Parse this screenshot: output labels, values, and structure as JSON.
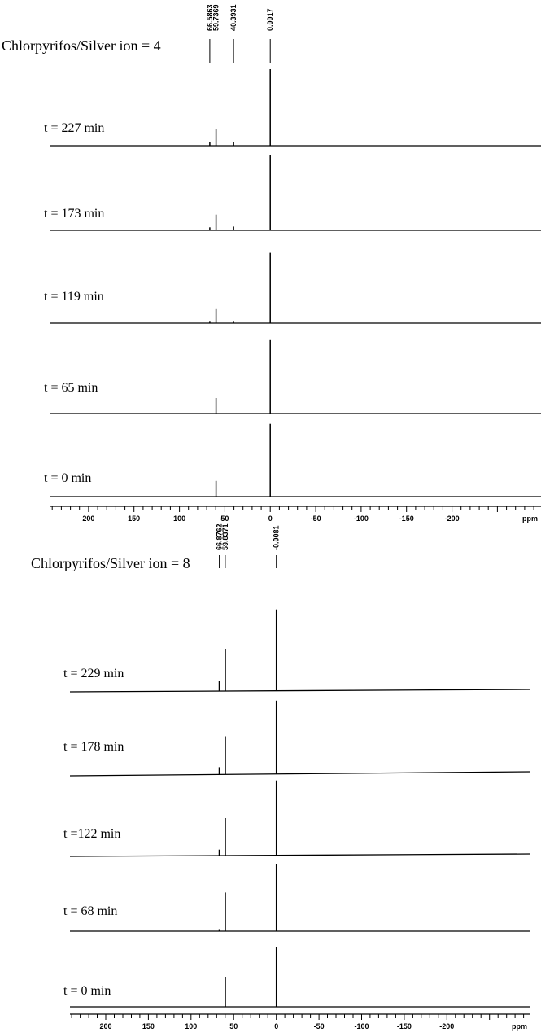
{
  "chart_data": [
    {
      "type": "line",
      "title": "Chlorpyrifos/Silver ion = 4",
      "xlabel": "ppm",
      "xlim": [
        242,
        -298
      ],
      "x_ticks": [
        200,
        150,
        100,
        50,
        0,
        -50,
        -100,
        -150,
        -200
      ],
      "x_tick_labels": [
        "200",
        "150",
        "100",
        "50",
        "0",
        "-50",
        "-100",
        "-150",
        "-200"
      ],
      "peak_labels": [
        {
          "ppm": 66.5863,
          "label": "66.5863"
        },
        {
          "ppm": 59.7369,
          "label": "59.7369"
        },
        {
          "ppm": 40.3931,
          "label": "40.3931"
        },
        {
          "ppm": 0.0017,
          "label": "0.0017"
        }
      ],
      "series": [
        {
          "name": "t = 227 min",
          "peaks": [
            {
              "ppm": 66.6,
              "height": 0.05
            },
            {
              "ppm": 59.7,
              "height": 0.22
            },
            {
              "ppm": 40.4,
              "height": 0.05
            },
            {
              "ppm": 0.0,
              "height": 1.0
            }
          ]
        },
        {
          "name": "t = 173 min",
          "peaks": [
            {
              "ppm": 66.6,
              "height": 0.04
            },
            {
              "ppm": 59.7,
              "height": 0.21
            },
            {
              "ppm": 40.4,
              "height": 0.05
            },
            {
              "ppm": 0.0,
              "height": 1.0
            }
          ]
        },
        {
          "name": "t = 119 min",
          "peaks": [
            {
              "ppm": 66.6,
              "height": 0.03
            },
            {
              "ppm": 59.7,
              "height": 0.2
            },
            {
              "ppm": 40.4,
              "height": 0.03
            },
            {
              "ppm": 0.0,
              "height": 0.95
            }
          ]
        },
        {
          "name": "t = 65 min",
          "peaks": [
            {
              "ppm": 59.7,
              "height": 0.2
            },
            {
              "ppm": 0.0,
              "height": 0.95
            }
          ]
        },
        {
          "name": "t = 0 min",
          "peaks": [
            {
              "ppm": 59.7,
              "height": 0.2
            },
            {
              "ppm": 0.0,
              "height": 0.93
            }
          ]
        }
      ]
    },
    {
      "type": "line",
      "title": "Chlorpyrifos/Silver ion = 8",
      "xlabel": "ppm",
      "xlim": [
        242,
        -298
      ],
      "x_ticks": [
        200,
        150,
        100,
        50,
        0,
        -50,
        -100,
        -150,
        -200
      ],
      "x_tick_labels": [
        "200",
        "150",
        "100",
        "50",
        "0",
        "-50",
        "-100",
        "-150",
        "-200"
      ],
      "peak_labels": [
        {
          "ppm": 66.8762,
          "label": "66.8762"
        },
        {
          "ppm": 59.8371,
          "label": "59.8371"
        },
        {
          "ppm": -0.0081,
          "label": "-0.0081"
        }
      ],
      "series": [
        {
          "name": "t = 229 min",
          "peaks": [
            {
              "ppm": 66.9,
              "height": 0.13
            },
            {
              "ppm": 59.8,
              "height": 0.52
            },
            {
              "ppm": 0.0,
              "height": 1.0
            }
          ]
        },
        {
          "name": "t = 178 min",
          "peaks": [
            {
              "ppm": 66.9,
              "height": 0.1
            },
            {
              "ppm": 59.8,
              "height": 0.52
            },
            {
              "ppm": 0.0,
              "height": 1.0
            }
          ]
        },
        {
          "name": "t =122 min",
          "peaks": [
            {
              "ppm": 66.9,
              "height": 0.08
            },
            {
              "ppm": 59.8,
              "height": 0.5
            },
            {
              "ppm": 0.0,
              "height": 1.0
            }
          ]
        },
        {
          "name": "t = 68 min",
          "peaks": [
            {
              "ppm": 66.9,
              "height": 0.03
            },
            {
              "ppm": 59.8,
              "height": 0.58
            },
            {
              "ppm": 0.0,
              "height": 1.0
            }
          ]
        },
        {
          "name": "t = 0 min",
          "peaks": [
            {
              "ppm": 59.8,
              "height": 0.5
            },
            {
              "ppm": 0.0,
              "height": 1.0
            }
          ]
        }
      ]
    }
  ]
}
